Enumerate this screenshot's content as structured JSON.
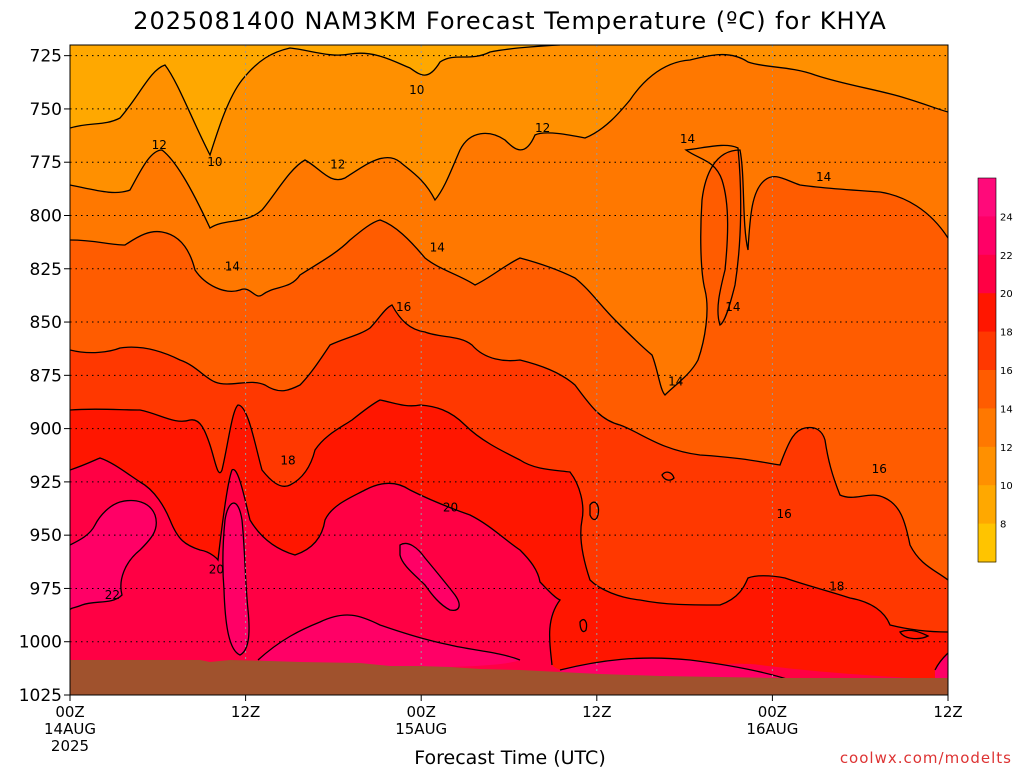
{
  "chart_data": {
    "type": "heatmap",
    "title": "2025081400 NAM3KM Forecast Temperature (ºC) for KHYA",
    "xlabel": "Forecast Time (UTC)",
    "ylabel": "",
    "credit": "coolwx.com/modelts",
    "y_axis": {
      "ticks": [
        725,
        750,
        775,
        800,
        825,
        850,
        875,
        900,
        925,
        950,
        975,
        1000,
        1025
      ],
      "ylim": [
        1025,
        720
      ],
      "orientation": "pressure decreasing upward"
    },
    "x_axis": {
      "ticks": [
        {
          "hour": 0,
          "line1": "00Z",
          "line2": "14AUG",
          "line3": "2025"
        },
        {
          "hour": 12,
          "line1": "12Z",
          "line2": "",
          "line3": ""
        },
        {
          "hour": 24,
          "line1": "00Z",
          "line2": "15AUG",
          "line3": ""
        },
        {
          "hour": 36,
          "line1": "12Z",
          "line2": "",
          "line3": ""
        },
        {
          "hour": 48,
          "line1": "00Z",
          "line2": "16AUG",
          "line3": ""
        },
        {
          "hour": 60,
          "line1": "12Z",
          "line2": "",
          "line3": ""
        }
      ],
      "xlim": [
        0,
        60
      ]
    },
    "grid": true,
    "colorbar": {
      "levels": [
        8,
        10,
        12,
        14,
        16,
        18,
        20,
        22,
        24
      ],
      "labels": [
        "8",
        "10",
        "12",
        "14",
        "16",
        "18",
        "20",
        "22",
        "24"
      ],
      "colors": [
        "#ffc400",
        "#ffa800",
        "#ff9000",
        "#ff7800",
        "#ff5c00",
        "#ff3800",
        "#ff1600",
        "#ff0044",
        "#ff0066",
        "#ff0a7a"
      ]
    },
    "contour_levels": [
      10,
      12,
      14,
      16,
      18,
      20,
      22
    ],
    "contour_labels": [
      {
        "value": "10",
        "hour": 23.7,
        "p": 741
      },
      {
        "value": "10",
        "hour": 9.9,
        "p": 775
      },
      {
        "value": "12",
        "hour": 6.1,
        "p": 767
      },
      {
        "value": "12",
        "hour": 18.3,
        "p": 776
      },
      {
        "value": "12",
        "hour": 32.3,
        "p": 759
      },
      {
        "value": "14",
        "hour": 42.2,
        "p": 764
      },
      {
        "value": "14",
        "hour": 51.5,
        "p": 782
      },
      {
        "value": "14",
        "hour": 25.1,
        "p": 815
      },
      {
        "value": "14",
        "hour": 11.1,
        "p": 824
      },
      {
        "value": "14",
        "hour": 45.3,
        "p": 843
      },
      {
        "value": "14",
        "hour": 41.4,
        "p": 878
      },
      {
        "value": "16",
        "hour": 22.8,
        "p": 843
      },
      {
        "value": "16",
        "hour": 55.3,
        "p": 919
      },
      {
        "value": "16",
        "hour": 48.8,
        "p": 940
      },
      {
        "value": "18",
        "hour": 14.9,
        "p": 915
      },
      {
        "value": "18",
        "hour": 52.4,
        "p": 974
      },
      {
        "value": "20",
        "hour": 26.0,
        "p": 937
      },
      {
        "value": "20",
        "hour": 10.0,
        "p": 966
      },
      {
        "value": "22",
        "hour": 2.9,
        "p": 978
      }
    ],
    "surface": {
      "color": "#a0522d",
      "p_top": 1005
    }
  }
}
